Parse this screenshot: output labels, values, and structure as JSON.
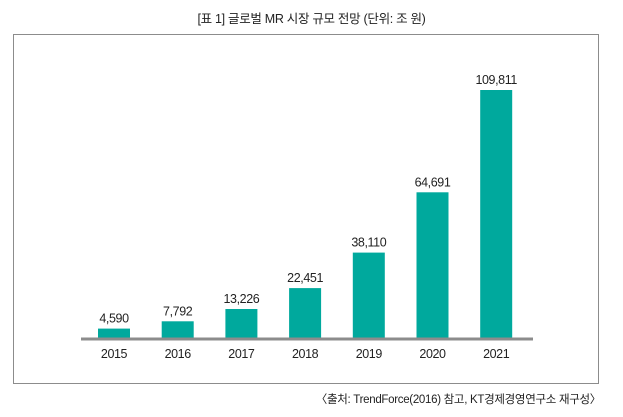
{
  "title": "[표 1] 글로벌 MR 시장 규모 전망 (단위: 조 원)",
  "source": "〈출처: TrendForce(2016) 참고, KT경제경영연구소 재구성〉",
  "colors": {
    "bar": "#00A99D",
    "axis": "#8c8c8c",
    "frame": "#8c8c8c"
  },
  "chart_data": {
    "type": "bar",
    "title": "[표 1] 글로벌 MR 시장 규모 전망 (단위: 조 원)",
    "xlabel": "",
    "ylabel": "",
    "categories": [
      "2015",
      "2016",
      "2017",
      "2018",
      "2019",
      "2020",
      "2021"
    ],
    "values": [
      4590,
      7792,
      13226,
      22451,
      38110,
      64691,
      109811
    ],
    "value_labels": [
      "4,590",
      "7,792",
      "13,226",
      "22,451",
      "38,110",
      "64,691",
      "109,811"
    ],
    "ylim": [
      0,
      109811
    ],
    "grid": false,
    "legend": "none"
  }
}
